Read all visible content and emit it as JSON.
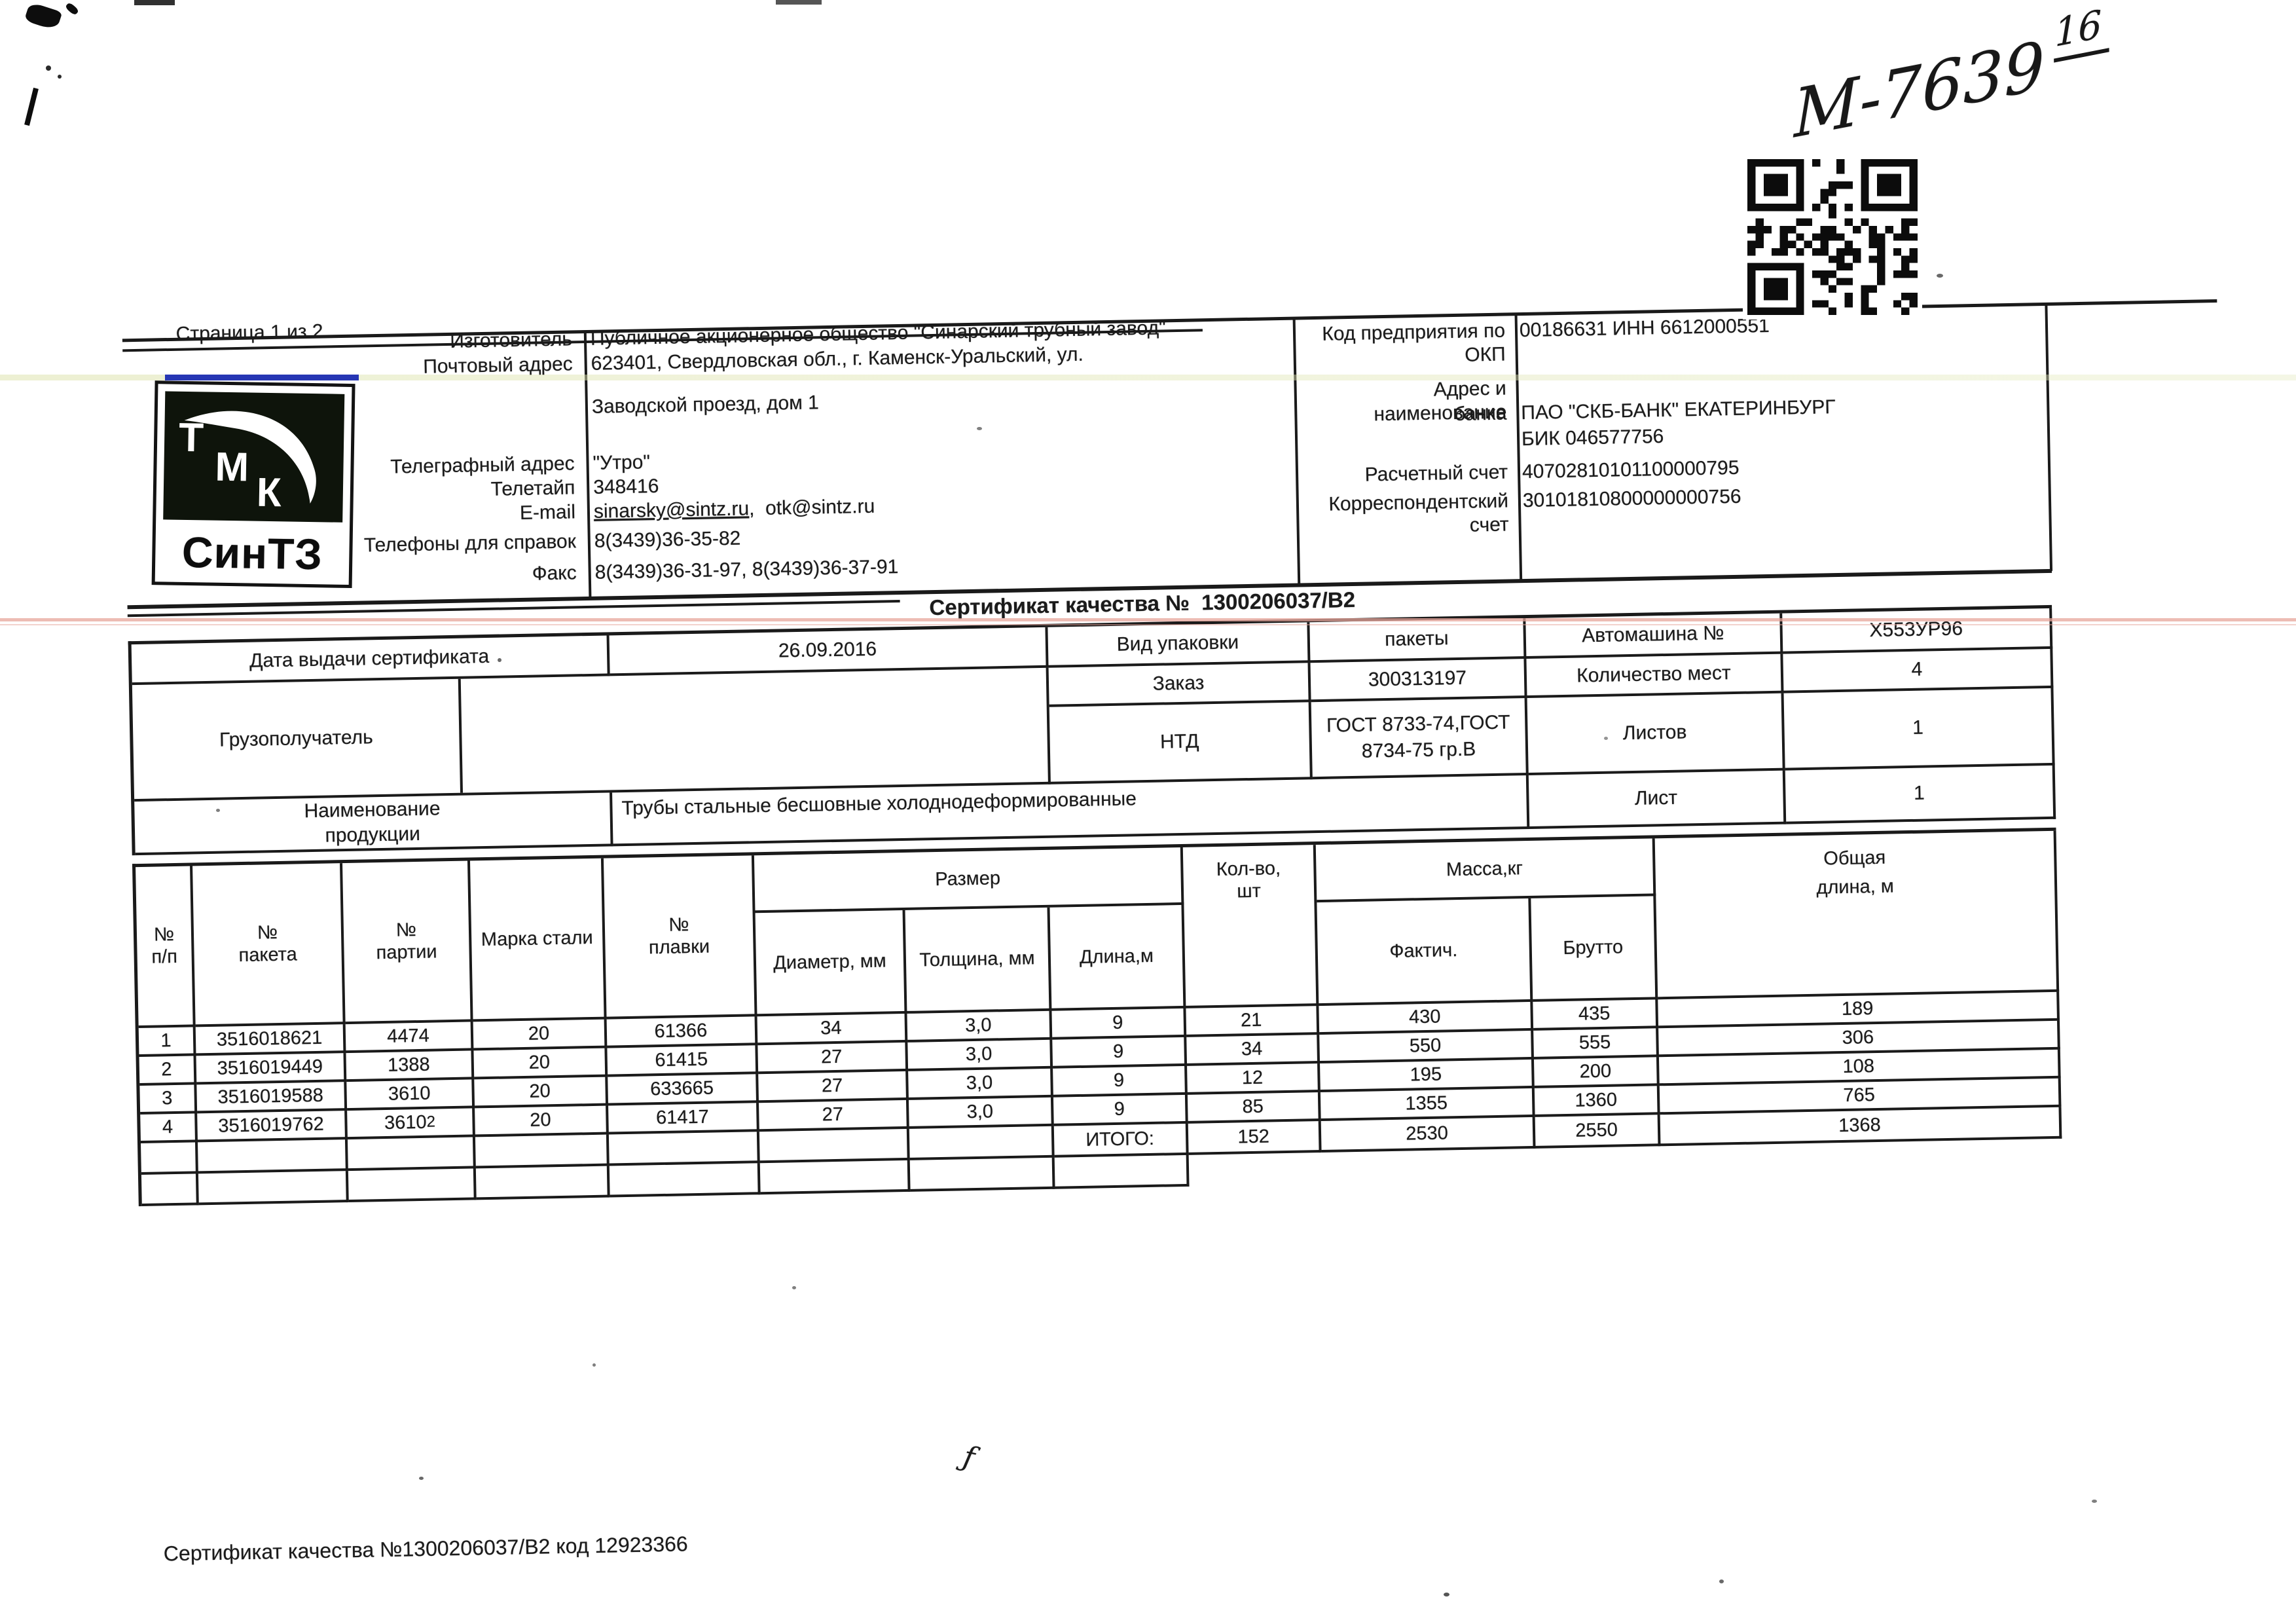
{
  "page_label": "Страница 1 из 2",
  "handwritten_note": {
    "main": "М-7639",
    "sup": "16"
  },
  "logo": {
    "t": "Т",
    "m": "М",
    "k": "К",
    "name": "СинТЗ"
  },
  "manufacturer": {
    "label_izgotovitel": "Изготовитель",
    "value_izgotovitel": "Публичное акционерное общество \"Синарский трубный завод\"",
    "label_post_address": "Почтовый адрес",
    "value_post_address_1": "623401, Свердловская обл., г. Каменск-Уральский, ул.",
    "value_post_address_2": "Заводской проезд, дом 1",
    "label_telegraph": "Телеграфный адрес",
    "value_telegraph": "\"Утро\"",
    "label_teletype": "Телетайп",
    "value_teletype": "348416",
    "label_email": "E-mail",
    "value_email_1": "sinarsky@sintz.ru",
    "value_email_2": ",  otk@sintz.ru",
    "label_phones": "Телефоны для справок",
    "value_phones": "8(3439)36-35-82",
    "label_fax": "Факс",
    "value_fax": "8(3439)36-31-97, 8(3439)36-37-91"
  },
  "bank": {
    "label_okp": "Код предприятия по ОКП",
    "value_okp": "00186631 ИНН 6612000551",
    "label_bank_1": "Адрес и наименование",
    "label_bank_2": "банка",
    "value_bank_1": "ПАО \"СКБ-БАНК\" ЕКАТЕРИНБУРГ",
    "value_bank_2": "БИК 046577756",
    "label_account": "Расчетный счет",
    "value_account": "40702810101100000795",
    "label_corr": "Корреспондентский счет",
    "value_corr": "30101810800000000756"
  },
  "certificate": {
    "title": "Сертификат качества №  1300206037/В2",
    "label_date": "Дата выдачи сертификата",
    "value_date": "26.09.2016",
    "label_consignee": "Грузополучатель",
    "label_product_1": "Наименование",
    "label_product_2": "продукции",
    "value_product": "Трубы стальные бесшовные холоднодеформированные",
    "label_packaging": "Вид упаковки",
    "value_packaging": "пакеты",
    "label_order": "Заказ",
    "value_order": "300313197",
    "label_ntd": "НТД",
    "value_ntd_1": "ГОСТ 8733-74,ГОСТ",
    "value_ntd_2": "8734-75 гр.В",
    "label_truck": "Автомашина №",
    "value_truck": "Х553УР96",
    "label_places": "Количество мест",
    "value_places": "4",
    "label_sheets": "Листов",
    "value_sheets": "1",
    "label_sheet": "Лист",
    "value_sheet": "1"
  },
  "table": {
    "headers": {
      "h_num_1": "№",
      "h_num_2": "п/п",
      "h_package_1": "№",
      "h_package_2": "пакета",
      "h_batch_1": "№",
      "h_batch_2": "партии",
      "h_steel": "Марка стали",
      "h_melt_1": "№",
      "h_melt_2": "плавки",
      "h_size": "Размер",
      "h_diameter": "Диаметр, мм",
      "h_thickness": "Толщина, мм",
      "h_length": "Длина,м",
      "h_qty_1": "Кол-во,",
      "h_qty_2": "шт",
      "h_mass": "Масса,кг",
      "h_fact": "Фактич.",
      "h_gross": "Брутто",
      "h_total_length_1": "Общая",
      "h_total_length_2": "длина, м"
    },
    "rows": [
      {
        "n": "1",
        "package": "3516018621",
        "batch": "4474",
        "batch_sup": "",
        "steel": "20",
        "melt": "61366",
        "diameter": "34",
        "thickness": "3,0",
        "length": "9",
        "qty": "21",
        "fact": "430",
        "gross": "435",
        "total_length": "189"
      },
      {
        "n": "2",
        "package": "3516019449",
        "batch": "1388",
        "batch_sup": "",
        "steel": "20",
        "melt": "61415",
        "diameter": "27",
        "thickness": "3,0",
        "length": "9",
        "qty": "34",
        "fact": "550",
        "gross": "555",
        "total_length": "306"
      },
      {
        "n": "3",
        "package": "3516019588",
        "batch": "3610",
        "batch_sup": "",
        "steel": "20",
        "melt": "633665",
        "diameter": "27",
        "thickness": "3,0",
        "length": "9",
        "qty": "12",
        "fact": "195",
        "gross": "200",
        "total_length": "108"
      },
      {
        "n": "4",
        "package": "3516019762",
        "batch": "3610",
        "batch_sup": "2",
        "steel": "20",
        "melt": "61417",
        "diameter": "27",
        "thickness": "3,0",
        "length": "9",
        "qty": "85",
        "fact": "1355",
        "gross": "1360",
        "total_length": "765"
      }
    ],
    "total_label": "ИТОГО:",
    "totals": {
      "qty": "152",
      "fact": "2530",
      "gross": "2550",
      "total_length": "1368"
    }
  },
  "footer": "Сертификат качества №1300206037/В2 код 12923366",
  "colors": {
    "ink": "#1b1b1b",
    "streak_blue": "#2636b4",
    "streak_pink": "#e7a69b",
    "streak_yellow": "#dee4af"
  }
}
